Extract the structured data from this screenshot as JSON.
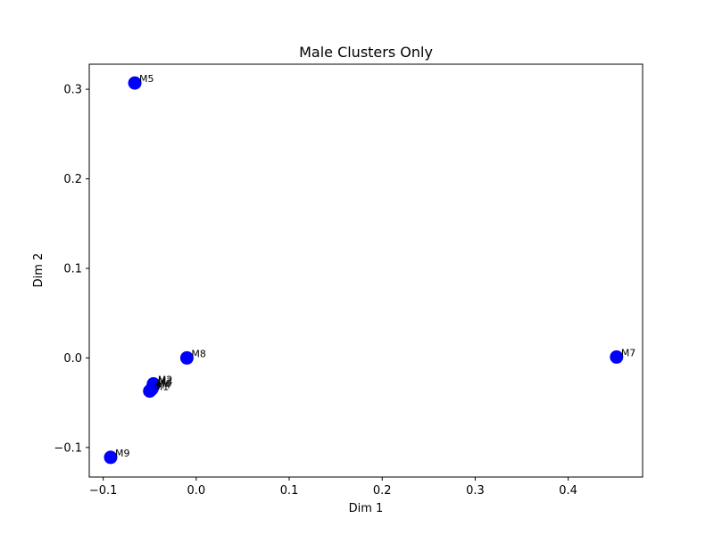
{
  "chart_data": {
    "type": "scatter",
    "title": "Male Clusters Only",
    "xlabel": "Dim 1",
    "ylabel": "Dim 2",
    "xlim": [
      -0.115,
      0.48
    ],
    "ylim": [
      -0.133,
      0.328
    ],
    "xticks": [
      -0.1,
      0.0,
      0.1,
      0.2,
      0.3,
      0.4
    ],
    "xtick_labels": [
      "−0.1",
      "0.0",
      "0.1",
      "0.2",
      "0.3",
      "0.4"
    ],
    "yticks": [
      -0.1,
      0.0,
      0.1,
      0.2,
      0.3
    ],
    "ytick_labels": [
      "−0.1",
      "0.0",
      "0.1",
      "0.2",
      "0.3"
    ],
    "grid": false,
    "point_color": "#0000ff",
    "points": [
      {
        "label": "M5",
        "x": -0.066,
        "y": 0.307
      },
      {
        "label": "M8",
        "x": -0.01,
        "y": 0.0
      },
      {
        "label": "M7",
        "x": 0.452,
        "y": 0.001
      },
      {
        "label": "M9",
        "x": -0.092,
        "y": -0.111
      },
      {
        "label": "M2",
        "x": -0.046,
        "y": -0.029
      },
      {
        "label": "M3",
        "x": -0.046,
        "y": -0.031
      },
      {
        "label": "M6",
        "x": -0.047,
        "y": -0.033
      },
      {
        "label": "M4",
        "x": -0.048,
        "y": -0.035
      },
      {
        "label": "M1",
        "x": -0.05,
        "y": -0.037
      }
    ]
  }
}
